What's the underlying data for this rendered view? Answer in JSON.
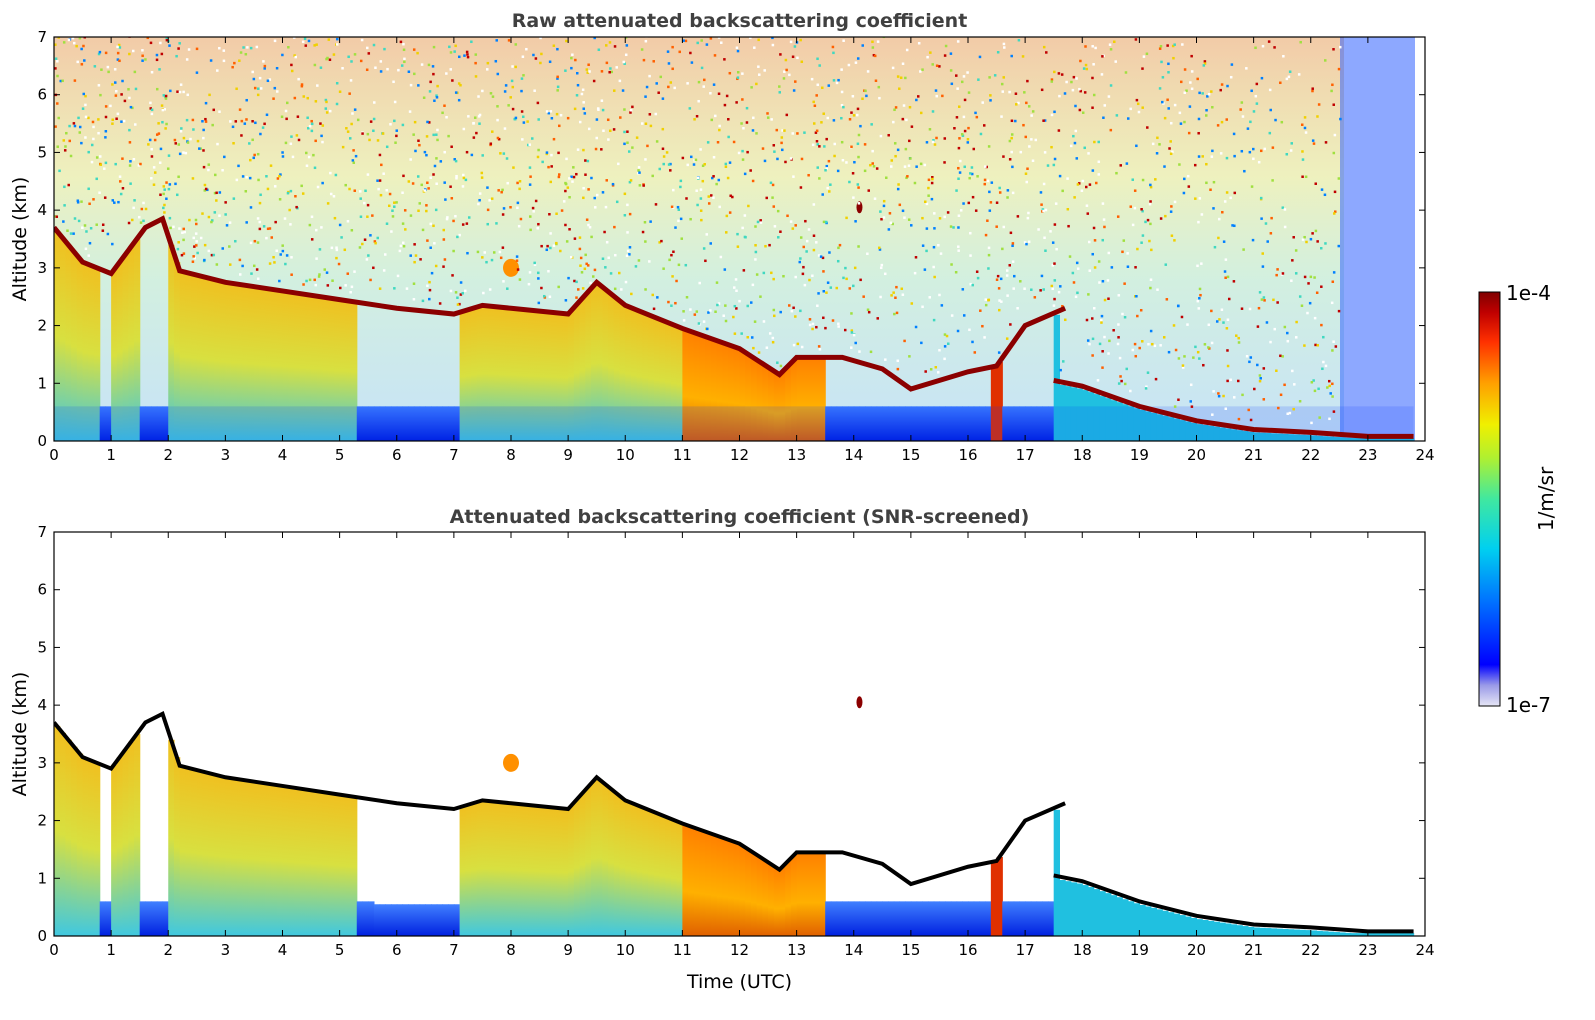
{
  "chart_data": [
    {
      "type": "heatmap",
      "title": "Raw attenuated backscattering coefficient",
      "xlabel": "",
      "ylabel": "Altitude (km)",
      "xlim": [
        0,
        24
      ],
      "ylim": [
        0,
        7
      ],
      "xticks": [
        "0",
        "1",
        "2",
        "3",
        "4",
        "5",
        "6",
        "7",
        "8",
        "9",
        "10",
        "11",
        "12",
        "13",
        "14",
        "15",
        "16",
        "17",
        "18",
        "19",
        "20",
        "21",
        "22",
        "23",
        "24"
      ],
      "yticks": [
        "0",
        "1",
        "2",
        "3",
        "4",
        "5",
        "6",
        "7"
      ],
      "cloud_base_km": [
        {
          "t": 0.0,
          "h": 3.7
        },
        {
          "t": 0.5,
          "h": 3.1
        },
        {
          "t": 1.0,
          "h": 2.9
        },
        {
          "t": 1.6,
          "h": 3.7
        },
        {
          "t": 1.9,
          "h": 3.85
        },
        {
          "t": 2.2,
          "h": 2.95
        },
        {
          "t": 3.0,
          "h": 2.75
        },
        {
          "t": 4.0,
          "h": 2.6
        },
        {
          "t": 5.0,
          "h": 2.45
        },
        {
          "t": 6.0,
          "h": 2.3
        },
        {
          "t": 7.0,
          "h": 2.2
        },
        {
          "t": 7.5,
          "h": 2.35
        },
        {
          "t": 8.0,
          "h": 2.3
        },
        {
          "t": 9.0,
          "h": 2.2
        },
        {
          "t": 9.5,
          "h": 2.75
        },
        {
          "t": 10.0,
          "h": 2.35
        },
        {
          "t": 11.0,
          "h": 1.95
        },
        {
          "t": 12.0,
          "h": 1.6
        },
        {
          "t": 12.7,
          "h": 1.15
        },
        {
          "t": 13.0,
          "h": 1.45
        },
        {
          "t": 13.8,
          "h": 1.45
        },
        {
          "t": 14.5,
          "h": 1.25
        },
        {
          "t": 15.0,
          "h": 0.9
        },
        {
          "t": 16.0,
          "h": 1.2
        },
        {
          "t": 16.5,
          "h": 1.3
        },
        {
          "t": 17.0,
          "h": 2.0
        },
        {
          "t": 17.7,
          "h": 2.3
        },
        {
          "t": 17.5,
          "h": 1.05
        },
        {
          "t": 18.0,
          "h": 0.95
        },
        {
          "t": 19.0,
          "h": 0.6
        },
        {
          "t": 20.0,
          "h": 0.35
        },
        {
          "t": 21.0,
          "h": 0.2
        },
        {
          "t": 22.0,
          "h": 0.15
        },
        {
          "t": 23.0,
          "h": 0.08
        },
        {
          "t": 23.8,
          "h": 0.08
        }
      ],
      "annotations": [
        {
          "t": 14.1,
          "h": 4.05,
          "text": ""
        },
        {
          "t": 8.0,
          "h": 3.0,
          "text": ""
        }
      ]
    },
    {
      "type": "heatmap",
      "title": "Attenuated backscattering coefficient (SNR-screened)",
      "xlabel": "Time (UTC)",
      "ylabel": "Altitude (km)",
      "xlim": [
        0,
        24
      ],
      "ylim": [
        0,
        7
      ],
      "xticks": [
        "0",
        "1",
        "2",
        "3",
        "4",
        "5",
        "6",
        "7",
        "8",
        "9",
        "10",
        "11",
        "12",
        "13",
        "14",
        "15",
        "16",
        "17",
        "18",
        "19",
        "20",
        "21",
        "22",
        "23",
        "24"
      ],
      "yticks": [
        "0",
        "1",
        "2",
        "3",
        "4",
        "5",
        "6",
        "7"
      ]
    }
  ],
  "colorbar": {
    "label": "1/m/sr",
    "max_label": "1e-4",
    "min_label": "1e-7",
    "scale": "log",
    "colors": [
      "#e6e6f5",
      "#b0b0ee",
      "#7a7aee",
      "#0000ff",
      "#0050ff",
      "#00a0ff",
      "#00e0e0",
      "#40e8a0",
      "#a0f040",
      "#f0f000",
      "#ffc000",
      "#ff8000",
      "#ff3000",
      "#d00000",
      "#800000"
    ]
  }
}
